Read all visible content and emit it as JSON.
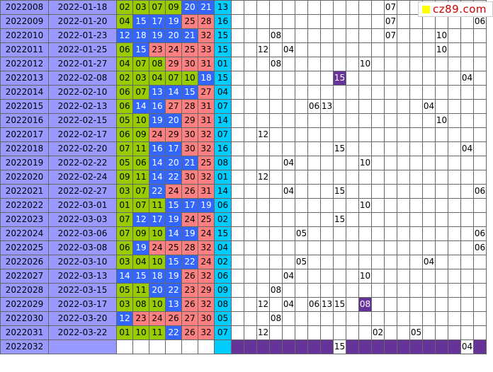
{
  "logo": {
    "text": "cz89.com",
    "icon": "yellow-square-icon"
  },
  "colors": {
    "issue_bg": "#9999ff",
    "green": "#99cc00",
    "blue": "#3366ff",
    "red": "#ff8080",
    "cyan": "#00ccff",
    "purple": "#663399"
  },
  "rows": [
    {
      "issue": "2022008",
      "date": "2022-01-18",
      "nums": [
        "02",
        "03",
        "07",
        "09",
        "20",
        "21"
      ],
      "blue": "13",
      "marks": {
        "12": "07"
      }
    },
    {
      "issue": "2022009",
      "date": "2022-01-20",
      "nums": [
        "04",
        "15",
        "17",
        "19",
        "25",
        "28"
      ],
      "blue": "16",
      "marks": {
        "12": "07",
        "19": "06"
      }
    },
    {
      "issue": "2022010",
      "date": "2022-01-23",
      "nums": [
        "12",
        "18",
        "19",
        "20",
        "21",
        "32"
      ],
      "blue": "15",
      "marks": {
        "3": "08",
        "12": "07",
        "16": "10"
      }
    },
    {
      "issue": "2022011",
      "date": "2022-01-25",
      "nums": [
        "06",
        "15",
        "23",
        "24",
        "25",
        "33"
      ],
      "blue": "15",
      "marks": {
        "2": "12",
        "4": "04",
        "16": "10"
      }
    },
    {
      "issue": "2022012",
      "date": "2022-01-27",
      "nums": [
        "04",
        "07",
        "08",
        "29",
        "30",
        "31"
      ],
      "blue": "01",
      "marks": {
        "3": "08",
        "10": "10"
      }
    },
    {
      "issue": "2022013",
      "date": "2022-02-08",
      "nums": [
        "02",
        "03",
        "04",
        "07",
        "10",
        "18"
      ],
      "blue": "15",
      "marks": {
        "8": "15",
        "18": "04"
      }
    },
    {
      "issue": "2022014",
      "date": "2022-02-10",
      "nums": [
        "06",
        "07",
        "13",
        "14",
        "15",
        "27"
      ],
      "blue": "04",
      "marks": {}
    },
    {
      "issue": "2022015",
      "date": "2022-02-13",
      "nums": [
        "06",
        "14",
        "16",
        "27",
        "28",
        "31"
      ],
      "blue": "07",
      "marks": {
        "6": "06",
        "7": "13",
        "15": "04"
      }
    },
    {
      "issue": "2022016",
      "date": "2022-02-15",
      "nums": [
        "05",
        "10",
        "19",
        "20",
        "29",
        "31"
      ],
      "blue": "14",
      "marks": {
        "16": "10"
      }
    },
    {
      "issue": "2022017",
      "date": "2022-02-17",
      "nums": [
        "06",
        "09",
        "24",
        "29",
        "30",
        "32"
      ],
      "blue": "07",
      "marks": {
        "2": "12"
      }
    },
    {
      "issue": "2022018",
      "date": "2022-02-20",
      "nums": [
        "07",
        "11",
        "16",
        "17",
        "30",
        "32"
      ],
      "blue": "16",
      "marks": {
        "8": "15",
        "18": "04"
      }
    },
    {
      "issue": "2022019",
      "date": "2022-02-22",
      "nums": [
        "05",
        "06",
        "14",
        "20",
        "21",
        "25"
      ],
      "blue": "08",
      "marks": {
        "4": "04",
        "10": "10"
      }
    },
    {
      "issue": "2022020",
      "date": "2022-02-24",
      "nums": [
        "09",
        "11",
        "14",
        "22",
        "30",
        "32"
      ],
      "blue": "01",
      "marks": {
        "2": "12"
      }
    },
    {
      "issue": "2022021",
      "date": "2022-02-27",
      "nums": [
        "03",
        "07",
        "22",
        "24",
        "26",
        "31"
      ],
      "blue": "14",
      "marks": {
        "4": "04",
        "8": "15",
        "19": "06"
      }
    },
    {
      "issue": "2022022",
      "date": "2022-03-01",
      "nums": [
        "01",
        "07",
        "11",
        "15",
        "17",
        "19"
      ],
      "blue": "06",
      "marks": {
        "10": "10"
      }
    },
    {
      "issue": "2022023",
      "date": "2022-03-03",
      "nums": [
        "07",
        "12",
        "17",
        "19",
        "24",
        "25"
      ],
      "blue": "02",
      "marks": {
        "8": "15"
      }
    },
    {
      "issue": "2022024",
      "date": "2022-03-06",
      "nums": [
        "07",
        "09",
        "10",
        "14",
        "19",
        "24"
      ],
      "blue": "15",
      "marks": {
        "5": "05",
        "19": "06"
      }
    },
    {
      "issue": "2022025",
      "date": "2022-03-08",
      "nums": [
        "06",
        "19",
        "24",
        "25",
        "28",
        "32"
      ],
      "blue": "04",
      "marks": {
        "19": "06"
      }
    },
    {
      "issue": "2022026",
      "date": "2022-03-10",
      "nums": [
        "03",
        "04",
        "10",
        "15",
        "22",
        "24"
      ],
      "blue": "02",
      "marks": {
        "5": "05",
        "15": "04"
      }
    },
    {
      "issue": "2022027",
      "date": "2022-03-13",
      "nums": [
        "14",
        "15",
        "18",
        "19",
        "26",
        "32"
      ],
      "blue": "06",
      "marks": {
        "4": "04",
        "10": "10"
      }
    },
    {
      "issue": "2022028",
      "date": "2022-03-15",
      "nums": [
        "05",
        "11",
        "20",
        "22",
        "23",
        "29"
      ],
      "blue": "09",
      "marks": {
        "3": "08"
      }
    },
    {
      "issue": "2022029",
      "date": "2022-03-17",
      "nums": [
        "03",
        "08",
        "10",
        "13",
        "26",
        "32"
      ],
      "blue": "08",
      "marks": {
        "2": "12",
        "4": "04",
        "6": "06",
        "7": "13",
        "8": "15",
        "10": "08"
      }
    },
    {
      "issue": "2022030",
      "date": "2022-03-20",
      "nums": [
        "12",
        "23",
        "24",
        "26",
        "27",
        "30"
      ],
      "blue": "05",
      "marks": {
        "3": "08"
      }
    },
    {
      "issue": "2022031",
      "date": "2022-03-22",
      "nums": [
        "01",
        "10",
        "11",
        "22",
        "26",
        "32"
      ],
      "blue": "07",
      "marks": {
        "2": "12",
        "11": "02",
        "14": "05"
      }
    },
    {
      "issue": "2022032",
      "date": "",
      "nums": [
        "",
        "",
        "",
        "",
        "",
        ""
      ],
      "blue": "",
      "marks": {
        "8": "15",
        "18": "04"
      }
    }
  ]
}
